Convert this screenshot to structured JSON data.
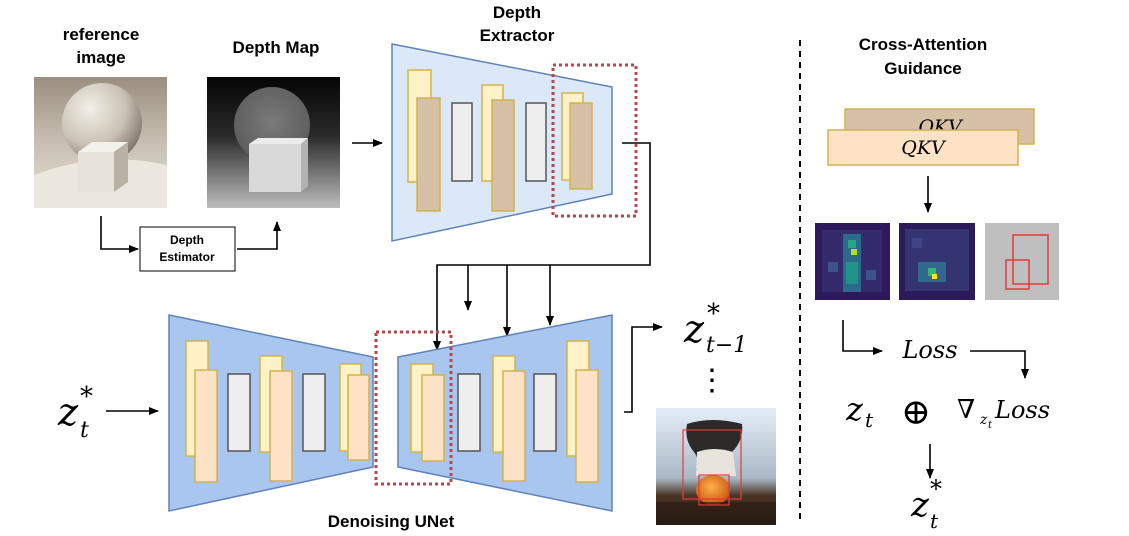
{
  "labels": {
    "reference_image_line1": "reference",
    "reference_image_line2": "image",
    "depth_map": "Depth Map",
    "depth_extractor_line1": "Depth",
    "depth_extractor_line2": "Extractor",
    "depth_estimator_line1": "Depth",
    "depth_estimator_line2": "Estimator",
    "denoising_unet": "Denoising UNet",
    "cross_attention_line1": "Cross-Attention",
    "cross_attention_line2": "Guidance"
  },
  "math": {
    "z_t_star_base": "z",
    "z_t_star_sup": "*",
    "z_t_star_sub": "t",
    "z_tm1_star_base": "z",
    "z_tm1_star_sup": "*",
    "z_tm1_star_sub": "t−1",
    "qkv_back": "QKV",
    "qkv_front": "QKV",
    "loss": "Loss",
    "z_t_base": "z",
    "z_t_sub": "t",
    "oplus": "⊕",
    "nabla": "∇",
    "nabla_sub_base": "z",
    "nabla_sub_sub": "t",
    "nabla_loss": "Loss",
    "z_out_base": "z",
    "z_out_sup": "*",
    "z_out_sub": "t",
    "vdots": "⋮"
  },
  "colors": {
    "extractor_fill": "#dbe8f8",
    "unet_fill": "#a9c6ef",
    "trapezoid_stroke": "#5f82b8",
    "yellow_block": "#fff2c6",
    "tan_block": "#d6c1a6",
    "peach_block": "#fde2c6",
    "block_stroke": "#d4b24c",
    "gray_block": "#eeeeee",
    "dotted_red": "#b5484a",
    "qkv_back": "#d6c1a6",
    "qkv_front": "#fde2c6"
  }
}
